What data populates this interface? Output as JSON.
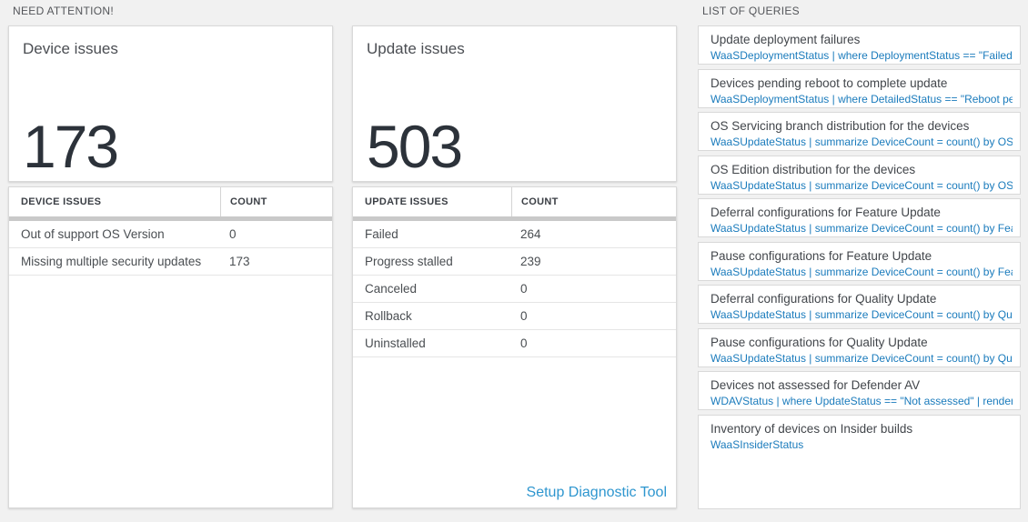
{
  "sections": {
    "need_attention": "NEED ATTENTION!",
    "list_of_queries": "LIST OF QUERIES"
  },
  "cards": [
    {
      "title": "Device issues",
      "count": "173",
      "table": {
        "headers": [
          "DEVICE ISSUES",
          "COUNT"
        ],
        "rows": [
          [
            "Out of support OS Version",
            "0"
          ],
          [
            "Missing multiple security updates",
            "173"
          ]
        ]
      }
    },
    {
      "title": "Update issues",
      "count": "503",
      "table": {
        "headers": [
          "UPDATE ISSUES",
          "COUNT"
        ],
        "rows": [
          [
            "Failed",
            "264"
          ],
          [
            "Progress stalled",
            "239"
          ],
          [
            "Canceled",
            "0"
          ],
          [
            "Rollback",
            "0"
          ],
          [
            "Uninstalled",
            "0"
          ]
        ]
      },
      "link_label": "Setup Diagnostic Tool"
    }
  ],
  "queries": [
    {
      "title": "Update deployment failures",
      "query": "WaaSDeploymentStatus | where DeploymentStatus == \"Failed\" |..."
    },
    {
      "title": "Devices pending reboot to complete update",
      "query": "WaaSDeploymentStatus | where DetailedStatus == \"Reboot pend..."
    },
    {
      "title": "OS Servicing branch distribution for the devices",
      "query": "WaaSUpdateStatus | summarize DeviceCount = count() by OSSer..."
    },
    {
      "title": "OS Edition distribution for the devices",
      "query": "WaaSUpdateStatus | summarize DeviceCount = count() by OSEdit..."
    },
    {
      "title": "Deferral configurations for Feature Update",
      "query": "WaaSUpdateStatus | summarize DeviceCount = count() by Featur..."
    },
    {
      "title": "Pause configurations for Feature Update",
      "query": "WaaSUpdateStatus | summarize DeviceCount = count() by Featur..."
    },
    {
      "title": "Deferral configurations for Quality Update",
      "query": "WaaSUpdateStatus | summarize DeviceCount = count() by Qualit..."
    },
    {
      "title": "Pause configurations for Quality Update",
      "query": "WaaSUpdateStatus | summarize DeviceCount = count() by Qualit..."
    },
    {
      "title": "Devices not assessed for Defender AV",
      "query": "WDAVStatus | where UpdateStatus == \"Not assessed\" | render ta..."
    },
    {
      "title": "Inventory of devices on Insider builds",
      "query": "WaaSInsiderStatus"
    }
  ],
  "colors": {
    "page_bg": "#f1f1f1",
    "tile_bg": "#ffffff",
    "tile_border": "#d9d9d9",
    "query_blue": "#1a7bbc",
    "link_blue": "#2e96cf",
    "big_number": "#2c323a",
    "thick_bar": "#c9c9c9"
  }
}
